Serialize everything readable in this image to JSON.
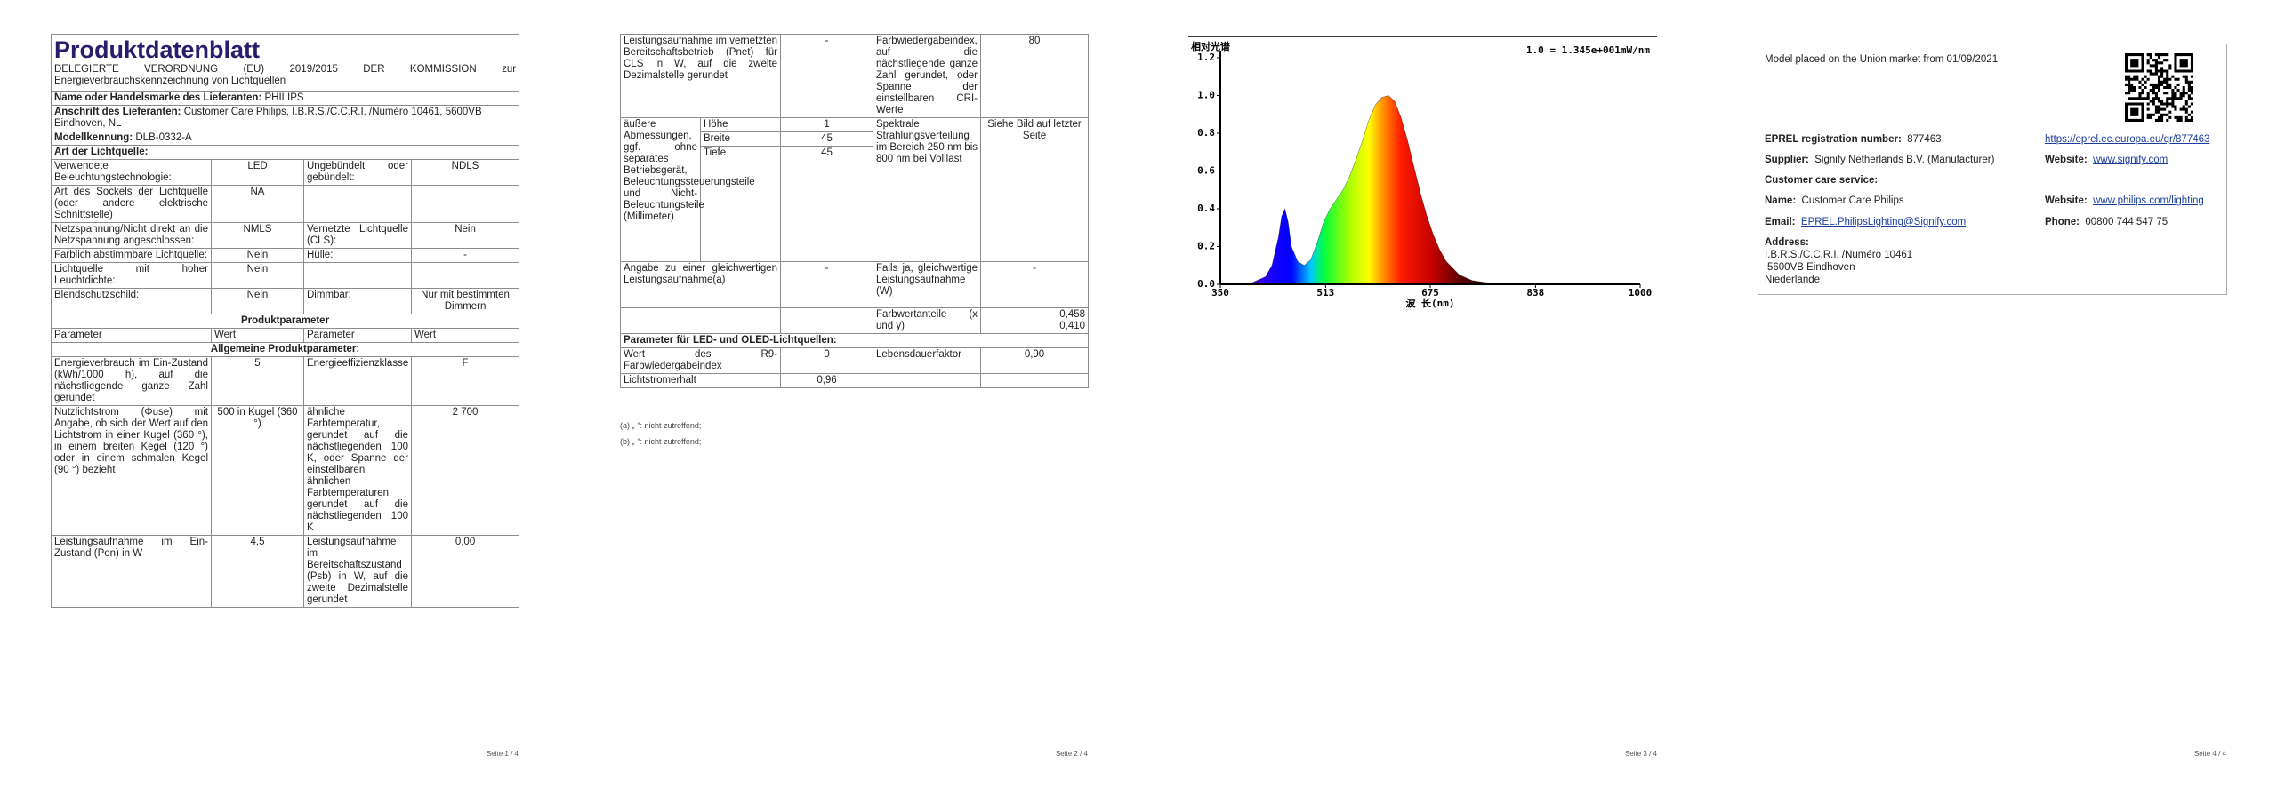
{
  "page1": {
    "title": "Produktdatenblatt",
    "regulation": "DELEGIERTE VERORDNUNG (EU) 2019/2015 DER KOMMISSION zur Energieverbrauchskennzeichnung von Lichtquellen",
    "supplier": {
      "label": "Name oder Handelsmarke des Lieferanten:",
      "value": "PHILIPS"
    },
    "address": {
      "label": "Anschrift des Lieferanten:",
      "value": "Customer Care Philips, I.B.R.S./C.C.R.I. /Numéro 10461, 5600VB Eindhoven, NL"
    },
    "model": {
      "label": "Modellkennung:",
      "value": "DLB-0332-A"
    },
    "light_source_heading": "Art der Lichtquelle:",
    "source_rows": [
      [
        "Verwendete Beleuchtungstechnologie:",
        "LED",
        "Ungebündelt oder gebündelt:",
        "NDLS"
      ],
      [
        "Art des Sockels der Lichtquelle (oder andere elektrische Schnittstelle)",
        "NA"
      ],
      [
        "Netzspannung/Nicht direkt an die Netzspannung angeschlossen:",
        "NMLS",
        "Vernetzte Lichtquelle (CLS):",
        "Nein"
      ],
      [
        "Farblich abstimmbare Lichtquelle:",
        "Nein",
        "Hülle:",
        "-"
      ],
      [
        "Lichtquelle mit hoher Leuchtdichte:",
        "Nein"
      ],
      [
        "Blendschutzschild:",
        "Nein",
        "Dimmbar:",
        "Nur mit bestimmten Dimmern"
      ]
    ],
    "product_params_heading": "Produktparameter",
    "param_header": [
      "Parameter",
      "Wert",
      "Parameter",
      "Wert"
    ],
    "general_heading": "Allgemeine Produktparameter:",
    "general_rows": [
      [
        "Energieverbrauch im Ein-Zustand (kWh/1000 h), auf die nächstliegende ganze Zahl gerundet",
        "5",
        "Energieeffizienzklasse",
        "F"
      ],
      [
        "Nutzlichtstrom (Φuse) mit Angabe, ob sich der Wert auf den Lichtstrom in einer Kugel (360 °), in einem breiten Kegel (120 °) oder in einem schmalen Kegel (90 °) bezieht",
        "500 in Kugel (360 °)",
        "ähnliche Farbtemperatur, gerundet auf die nächstliegenden 100 K, oder Spanne der einstellbaren ähnlichen Farbtemperaturen, gerundet auf die nächstliegenden 100 K",
        "2 700"
      ],
      [
        "Leistungsaufnahme im Ein-Zustand (Pon) in W",
        "4,5",
        "Leistungsaufnahme im Bereitschaftszustand (Psb) in W, auf die zweite Dezimalstelle gerundet",
        "0,00"
      ]
    ]
  },
  "page2": {
    "top": [
      "Leistungsaufnahme im vernetzten Bereitschaftsbetrieb (Pnet) für CLS in W, auf die zweite Dezimalstelle gerundet",
      "-",
      "Farbwiedergabeindex, auf die nächstliegende ganze Zahl gerundet, oder Spanne der einstellbaren CRI-Werte",
      "80"
    ],
    "dimensions": {
      "label": "äußere Abmessungen, ggf. ohne separates Betriebsgerät, Beleuchtungssteuerungsteile und Nicht-Beleuchtungsteile (Millimeter)",
      "items": [
        [
          "Höhe",
          "1"
        ],
        [
          "Breite",
          "45"
        ],
        [
          "Tiefe",
          "45"
        ]
      ]
    },
    "spectrum": {
      "label": "Spektrale Strahlungsverteilung im Bereich 250 nm bis 800 nm bei Volllast",
      "value": "Siehe Bild auf letzter Seite"
    },
    "equivalent": [
      "Angabe zu einer gleichwertigen Leistungsaufnahme(a)",
      "-",
      "Falls ja, gleichwertige Leistungsaufnahme (W)",
      "-"
    ],
    "chromaticity": {
      "label": "Farbwertanteile (x und y)",
      "values": [
        "0,458",
        "0,410"
      ]
    },
    "led_heading": "Parameter für LED- und OLED-Lichtquellen:",
    "led_rows": [
      [
        "Wert des R9-Farbwiedergabeindex",
        "0",
        "Lebensdauerfaktor",
        "0,90"
      ],
      [
        "Lichtstromerhalt",
        "0,96"
      ]
    ],
    "footnotes": [
      "(a) „-“: nicht zutreffend;",
      "(b) „-“: nicht zutreffend;"
    ]
  },
  "page4": {
    "placed": "Model placed on the Union market from 01/09/2021",
    "eprel": {
      "label": "EPREL registration number:",
      "value": "877463",
      "link": "https://eprel.ec.europa.eu/qr/877463"
    },
    "supplier": {
      "label": "Supplier:",
      "value": "Signify Netherlands B.V. (Manufacturer)",
      "website_label": "Website:",
      "website": "www.signify.com"
    },
    "customer_care": "Customer care service:",
    "name": {
      "label": "Name:",
      "value": "Customer Care Philips",
      "website_label": "Website:",
      "website": "www.philips.com/lighting"
    },
    "email": {
      "label": "Email:",
      "value": "EPREL.PhilipsLighting@Signify.com",
      "phone_label": "Phone:",
      "phone": "00800 744 547 75"
    },
    "address": {
      "label": "Address:",
      "lines": [
        "I.B.R.S./C.C.R.I. /Numéro 10461",
        "5600VB Eindhoven",
        "Niederlande"
      ]
    }
  },
  "footers": [
    "Seite 1 / 4",
    "Seite 2 / 4",
    "Seite 3 / 4",
    "Seite 4 / 4"
  ],
  "chart_data": {
    "type": "area",
    "y_label": "相对光谱",
    "annotation": "1.0 = 1.345e+001mW/nm",
    "x_label": "波 长(nm)",
    "x": [
      350,
      380,
      400,
      420,
      430,
      440,
      445,
      450,
      455,
      460,
      470,
      480,
      490,
      500,
      510,
      520,
      530,
      540,
      550,
      560,
      570,
      580,
      590,
      600,
      610,
      620,
      630,
      640,
      650,
      660,
      670,
      680,
      690,
      700,
      720,
      740,
      760,
      800,
      1000
    ],
    "values": [
      0,
      0,
      0.01,
      0.04,
      0.1,
      0.25,
      0.36,
      0.4,
      0.33,
      0.2,
      0.12,
      0.1,
      0.13,
      0.22,
      0.33,
      0.4,
      0.45,
      0.5,
      0.57,
      0.66,
      0.76,
      0.87,
      0.95,
      0.99,
      1,
      0.97,
      0.88,
      0.76,
      0.62,
      0.48,
      0.36,
      0.26,
      0.18,
      0.12,
      0.05,
      0.02,
      0.01,
      0,
      0
    ],
    "xlim": [
      350,
      1000
    ],
    "ylim": [
      0,
      1.2
    ],
    "xticks": [
      350,
      513,
      675,
      838,
      1000
    ],
    "yticks": [
      {
        "value": 0,
        "label": "0.0"
      },
      0.2,
      0.4,
      0.6,
      0.8,
      {
        "value": 1,
        "label": "1.0"
      },
      1.2
    ]
  }
}
